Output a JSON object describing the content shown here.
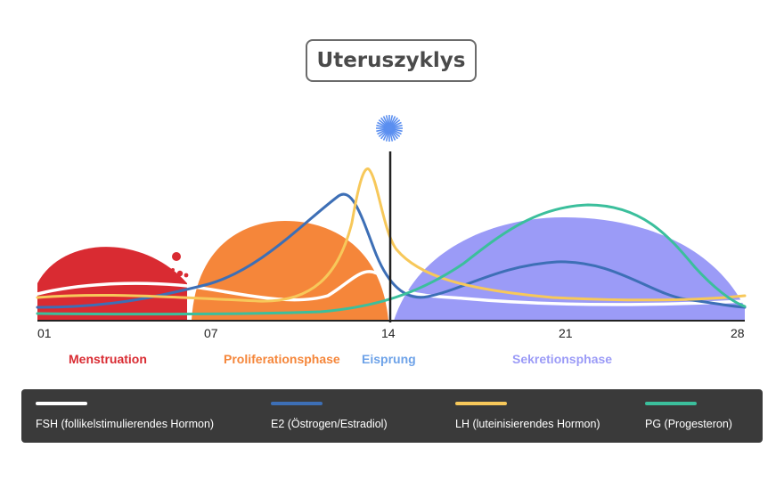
{
  "title": "Uteruszyklys",
  "ticks": [
    "01",
    "07",
    "14",
    "21",
    "28"
  ],
  "phases": [
    {
      "label": "Menstruation",
      "color": "#d92b32"
    },
    {
      "label": "Proliferationsphase",
      "color": "#f5863a"
    },
    {
      "label": "Eisprung",
      "color": "#6da2e8"
    },
    {
      "label": "Sekretionsphase",
      "color": "#9b9bf7"
    }
  ],
  "legend": [
    {
      "label": "FSH (follikelstimulierendes Hormon)",
      "color": "#ffffff"
    },
    {
      "label": "E2 (Östrogen/Estradiol)",
      "color": "#3d6fb6"
    },
    {
      "label": "LH (luteinisierendes Hormon)",
      "color": "#f7c85a"
    },
    {
      "label": "PG (Progesteron)",
      "color": "#3bbf9c"
    }
  ],
  "ovulation_icon": "sun-burst-icon",
  "blood_drops_icon": "blood-drops-icon"
}
